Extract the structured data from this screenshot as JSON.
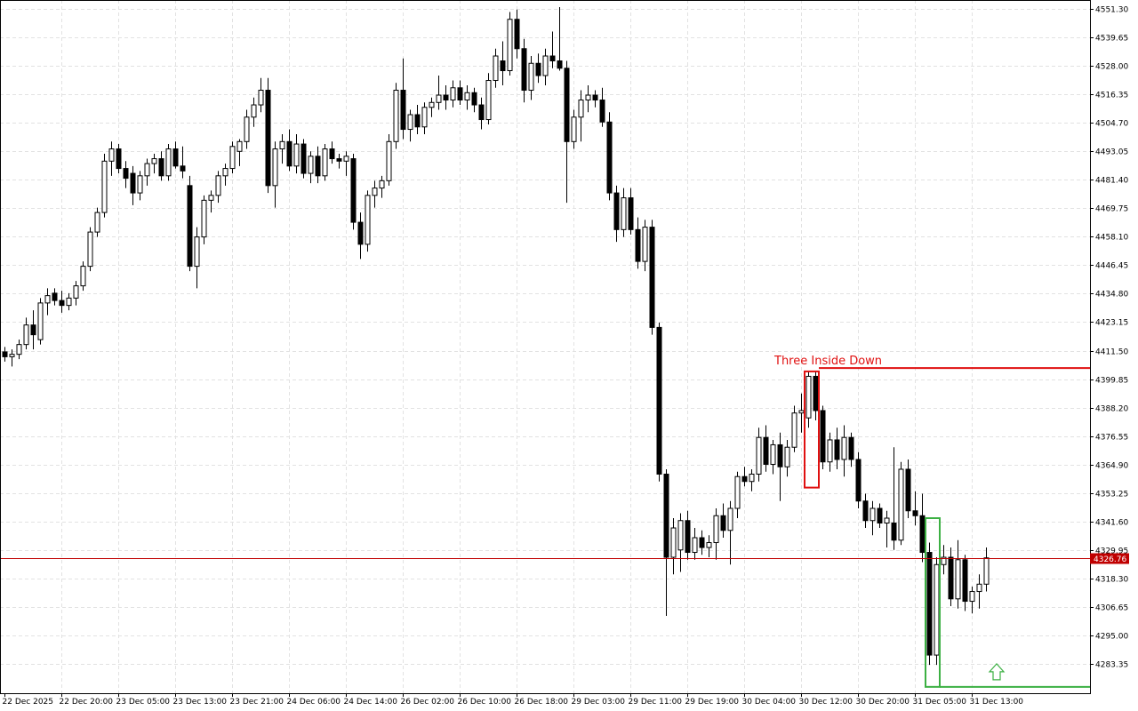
{
  "chart_data": {
    "type": "candlestick",
    "categories": [
      "22 Dec 2025",
      null,
      null,
      null,
      null,
      null,
      null,
      null,
      "22 Dec 20:00",
      null,
      null,
      null,
      null,
      null,
      null,
      null,
      "23 Dec 05:00",
      null,
      null,
      null,
      null,
      null,
      null,
      null,
      "23 Dec 13:00",
      null,
      null,
      null,
      null,
      null,
      null,
      null,
      "23 Dec 21:00",
      null,
      null,
      null,
      null,
      null,
      null,
      null,
      "24 Dec 06:00",
      null,
      null,
      null,
      null,
      null,
      null,
      null,
      "24 Dec 14:00",
      null,
      null,
      null,
      null,
      null,
      null,
      null,
      "26 Dec 02:00",
      null,
      null,
      null,
      null,
      null,
      null,
      null,
      "26 Dec 10:00",
      null,
      null,
      null,
      null,
      null,
      null,
      null,
      "26 Dec 18:00",
      null,
      null,
      null,
      null,
      null,
      null,
      null,
      "29 Dec 03:00",
      null,
      null,
      null,
      null,
      null,
      null,
      null,
      "29 Dec 11:00",
      null,
      null,
      null,
      null,
      null,
      null,
      null,
      "29 Dec 19:00",
      null,
      null,
      null,
      null,
      null,
      null,
      null,
      "30 Dec 04:00",
      null,
      null,
      null,
      null,
      null,
      null,
      null,
      "30 Dec 12:00",
      null,
      null,
      null,
      null,
      null,
      null,
      null,
      "30 Dec 20:00",
      null,
      null,
      null,
      null,
      null,
      null,
      null,
      "31 Dec 05:00",
      null,
      null,
      null,
      null,
      null,
      null,
      null,
      "31 Dec 13:00",
      null,
      null
    ],
    "ohlc": [
      [
        4411,
        4413,
        4407,
        4409
      ],
      [
        4409,
        4412,
        4405,
        4410
      ],
      [
        4410,
        4416,
        4408,
        4414
      ],
      [
        4414,
        4425,
        4412,
        4422
      ],
      [
        4422,
        4428,
        4412,
        4418
      ],
      [
        4416,
        4433,
        4414,
        4431
      ],
      [
        4431,
        4437,
        4426,
        4434
      ],
      [
        4435,
        4437,
        4430,
        4432
      ],
      [
        4432,
        4436,
        4427,
        4430
      ],
      [
        4430,
        4435,
        4428,
        4433
      ],
      [
        4433,
        4440,
        4430,
        4438
      ],
      [
        4438,
        4448,
        4436,
        4446
      ],
      [
        4446,
        4462,
        4444,
        4460
      ],
      [
        4460,
        4470,
        4458,
        4468
      ],
      [
        4468,
        4492,
        4466,
        4489
      ],
      [
        4489,
        4497,
        4483,
        4494
      ],
      [
        4494,
        4496,
        4484,
        4486
      ],
      [
        4486,
        4489,
        4478,
        4482
      ],
      [
        4484,
        4487,
        4471,
        4476
      ],
      [
        4476,
        4485,
        4473,
        4483
      ],
      [
        4483,
        4490,
        4479,
        4488
      ],
      [
        4488,
        4492,
        4484,
        4490
      ],
      [
        4490,
        4493,
        4481,
        4483
      ],
      [
        4483,
        4496,
        4481,
        4494
      ],
      [
        4494,
        4497,
        4486,
        4487
      ],
      [
        4487,
        4495,
        4482,
        4485
      ],
      [
        4479,
        4483,
        4444,
        4446
      ],
      [
        4446,
        4462,
        4437,
        4458
      ],
      [
        4458,
        4475,
        4455,
        4473
      ],
      [
        4473,
        4477,
        4468,
        4475
      ],
      [
        4475,
        4485,
        4472,
        4483
      ],
      [
        4483,
        4488,
        4479,
        4486
      ],
      [
        4486,
        4497,
        4484,
        4495
      ],
      [
        4493,
        4498,
        4487,
        4497
      ],
      [
        4497,
        4510,
        4494,
        4507
      ],
      [
        4507,
        4515,
        4503,
        4512
      ],
      [
        4512,
        4523,
        4509,
        4518
      ],
      [
        4518,
        4523,
        4476,
        4479
      ],
      [
        4479,
        4497,
        4470,
        4494
      ],
      [
        4494,
        4500,
        4488,
        4497
      ],
      [
        4497,
        4502,
        4485,
        4487
      ],
      [
        4487,
        4500,
        4484,
        4496
      ],
      [
        4496,
        4498,
        4482,
        4484
      ],
      [
        4484,
        4493,
        4480,
        4491
      ],
      [
        4491,
        4495,
        4480,
        4483
      ],
      [
        4483,
        4496,
        4481,
        4494
      ],
      [
        4494,
        4497,
        4488,
        4490
      ],
      [
        4490,
        4492,
        4486,
        4489
      ],
      [
        4489,
        4493,
        4483,
        4491
      ],
      [
        4490,
        4492,
        4461,
        4464
      ],
      [
        4464,
        4468,
        4449,
        4455
      ],
      [
        4455,
        4477,
        4452,
        4475
      ],
      [
        4475,
        4481,
        4470,
        4478
      ],
      [
        4478,
        4483,
        4474,
        4481
      ],
      [
        4481,
        4500,
        4479,
        4497
      ],
      [
        4497,
        4521,
        4494,
        4518
      ],
      [
        4518,
        4531,
        4498,
        4502
      ],
      [
        4502,
        4510,
        4497,
        4508
      ],
      [
        4508,
        4512,
        4500,
        4503
      ],
      [
        4503,
        4513,
        4500,
        4511
      ],
      [
        4511,
        4515,
        4507,
        4513
      ],
      [
        4513,
        4524,
        4510,
        4516
      ],
      [
        4516,
        4520,
        4510,
        4514
      ],
      [
        4514,
        4522,
        4511,
        4519
      ],
      [
        4519,
        4522,
        4512,
        4514
      ],
      [
        4514,
        4520,
        4510,
        4517
      ],
      [
        4517,
        4519,
        4509,
        4512
      ],
      [
        4512,
        4515,
        4502,
        4506
      ],
      [
        4506,
        4525,
        4504,
        4522
      ],
      [
        4522,
        4535,
        4519,
        4532
      ],
      [
        4530,
        4538,
        4520,
        4526
      ],
      [
        4526,
        4550,
        4524,
        4547
      ],
      [
        4547,
        4551,
        4531,
        4535
      ],
      [
        4535,
        4539,
        4513,
        4518
      ],
      [
        4518,
        4532,
        4514,
        4529
      ],
      [
        4529,
        4533,
        4521,
        4524
      ],
      [
        4524,
        4535,
        4520,
        4532
      ],
      [
        4532,
        4542,
        4527,
        4530
      ],
      [
        4530,
        4552,
        4526,
        4527
      ],
      [
        4527,
        4530,
        4472,
        4497
      ],
      [
        4497,
        4510,
        4494,
        4507
      ],
      [
        4507,
        4518,
        4497,
        4514
      ],
      [
        4514,
        4520,
        4509,
        4516
      ],
      [
        4516,
        4518,
        4511,
        4514
      ],
      [
        4514,
        4519,
        4503,
        4505
      ],
      [
        4505,
        4509,
        4473,
        4476
      ],
      [
        4476,
        4479,
        4456,
        4461
      ],
      [
        4461,
        4478,
        4458,
        4474
      ],
      [
        4474,
        4478,
        4459,
        4461
      ],
      [
        4461,
        4466,
        4445,
        4448
      ],
      [
        4448,
        4465,
        4444,
        4462
      ],
      [
        4462,
        4465,
        4418,
        4421
      ],
      [
        4421,
        4423,
        4358,
        4361
      ],
      [
        4361,
        4363,
        4303,
        4327
      ],
      [
        4327,
        4343,
        4320,
        4339
      ],
      [
        4330,
        4345,
        4321,
        4342
      ],
      [
        4342,
        4346,
        4326,
        4329
      ],
      [
        4329,
        4339,
        4326,
        4335
      ],
      [
        4335,
        4338,
        4328,
        4331
      ],
      [
        4331,
        4336,
        4327,
        4333
      ],
      [
        4333,
        4347,
        4326,
        4344
      ],
      [
        4344,
        4349,
        4335,
        4338
      ],
      [
        4338,
        4350,
        4324,
        4347
      ],
      [
        4347,
        4362,
        4343,
        4360
      ],
      [
        4360,
        4364,
        4356,
        4358
      ],
      [
        4358,
        4363,
        4354,
        4361
      ],
      [
        4361,
        4380,
        4358,
        4376
      ],
      [
        4376,
        4381,
        4362,
        4365
      ],
      [
        4365,
        4375,
        4361,
        4373
      ],
      [
        4373,
        4378,
        4350,
        4364
      ],
      [
        4364,
        4375,
        4360,
        4372
      ],
      [
        4372,
        4389,
        4370,
        4386
      ],
      [
        4386,
        4394,
        4378,
        4387
      ],
      [
        4384,
        4403,
        4380,
        4401
      ],
      [
        4401,
        4403,
        4383,
        4387
      ],
      [
        4387,
        4389,
        4363,
        4366
      ],
      [
        4366,
        4378,
        4362,
        4375
      ],
      [
        4375,
        4380,
        4363,
        4367
      ],
      [
        4367,
        4381,
        4360,
        4376
      ],
      [
        4376,
        4378,
        4364,
        4367
      ],
      [
        4367,
        4370,
        4347,
        4350
      ],
      [
        4350,
        4353,
        4339,
        4342
      ],
      [
        4342,
        4350,
        4336,
        4347
      ],
      [
        4347,
        4349,
        4339,
        4341
      ],
      [
        4341,
        4346,
        4331,
        4343
      ],
      [
        4341,
        4372,
        4330,
        4334
      ],
      [
        4334,
        4366,
        4332,
        4363
      ],
      [
        4363,
        4367,
        4343,
        4346
      ],
      [
        4346,
        4354,
        4340,
        4344
      ],
      [
        4344,
        4353,
        4325,
        4329
      ],
      [
        4329,
        4333,
        4283,
        4287
      ],
      [
        4287,
        4327,
        4283,
        4324
      ],
      [
        4324,
        4332,
        4320,
        4327
      ],
      [
        4327,
        4331,
        4307,
        4310
      ],
      [
        4310,
        4334,
        4306,
        4326
      ],
      [
        4326,
        4328,
        4305,
        4309
      ],
      [
        4309,
        4315,
        4304,
        4313
      ],
      [
        4313,
        4320,
        4306,
        4316
      ],
      [
        4316,
        4331,
        4313,
        4326.76
      ]
    ],
    "bull_color": "#ffffff",
    "bear_color": "#000000",
    "wick_color": "#000000",
    "ylim": [
      4271.4,
      4554.9
    ],
    "yticks": [
      {
        "value": 4551.3,
        "label": "4551.30"
      },
      4539.65,
      {
        "value": 4528,
        "label": "4528.00"
      },
      4516.35,
      {
        "value": 4504.7,
        "label": "4504.70"
      },
      4493.05,
      {
        "value": 4481.4,
        "label": "4481.40"
      },
      4469.75,
      {
        "value": 4458.1,
        "label": "4458.10"
      },
      4446.45,
      {
        "value": 4434.8,
        "label": "4434.80"
      },
      4423.15,
      {
        "value": 4411.5,
        "label": "4411.50"
      },
      4399.85,
      {
        "value": 4388.2,
        "label": "4388.20"
      },
      4376.55,
      {
        "value": 4364.9,
        "label": "4364.90"
      },
      4353.25,
      {
        "value": 4341.6,
        "label": "4341.60"
      },
      4329.95,
      {
        "value": 4318.3,
        "label": "4318.30"
      },
      4306.65,
      {
        "value": 4295,
        "label": "4295.00"
      },
      4283.35
    ],
    "grid": true,
    "last_price": 4326.76,
    "last_price_color": "#c00000",
    "patterns": [
      {
        "label": "Three Inside Down",
        "color": "#e01010",
        "start": 113,
        "end": 114,
        "high": 4403,
        "low": 4355.5,
        "level": 4404.4
      },
      {
        "color": "#3cb043",
        "start": 130,
        "end": 131,
        "high": 4343,
        "low": 4274,
        "level": 4274,
        "arrow": "up"
      }
    ]
  }
}
